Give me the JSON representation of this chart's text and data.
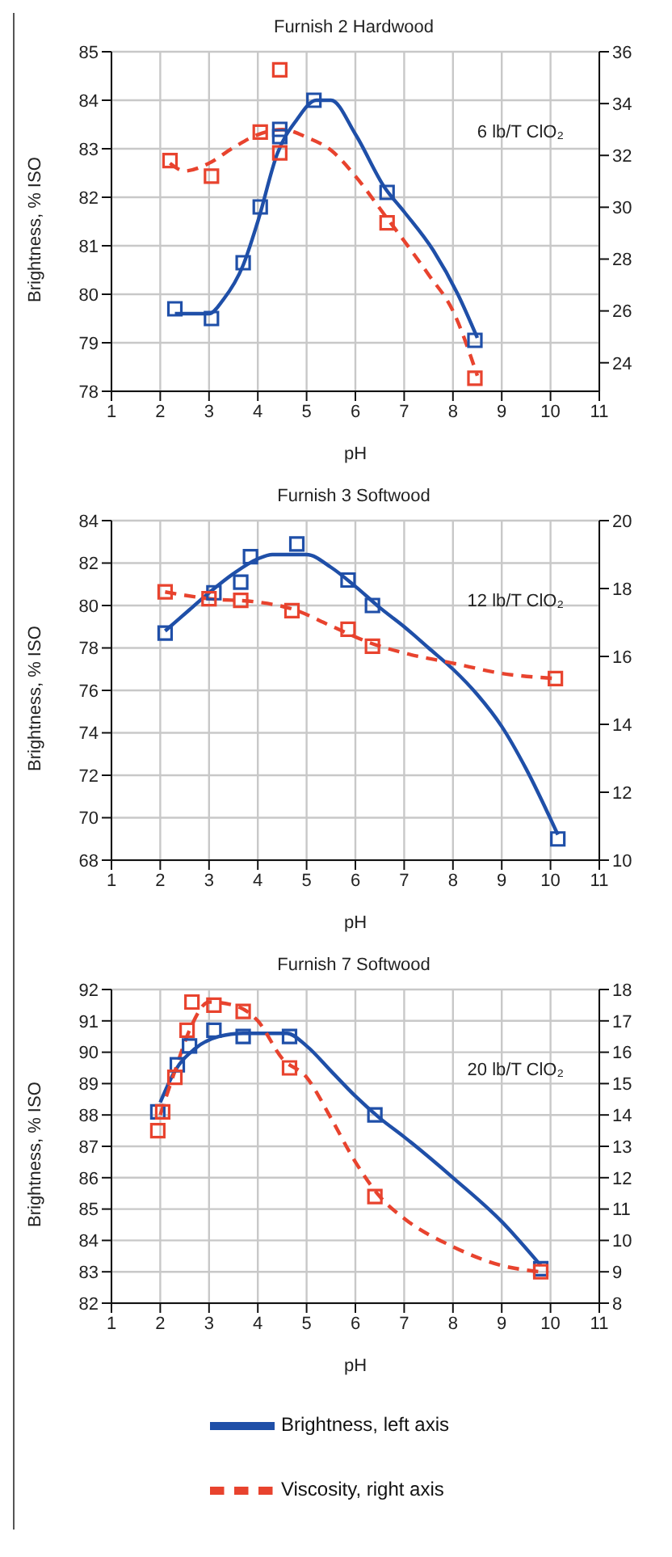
{
  "chart_data": [
    {
      "type": "line",
      "title": "Furnish 2 Hardwood",
      "xlabel": "pH",
      "ylabel": "Brightness, % ISO",
      "xlim": [
        1,
        11
      ],
      "xticks": [
        1,
        2,
        3,
        4,
        5,
        6,
        7,
        8,
        9,
        10,
        11
      ],
      "ylim": [
        78,
        85
      ],
      "yticks": [
        78,
        79,
        80,
        81,
        82,
        83,
        84,
        85
      ],
      "y2lim": [
        22.9,
        36
      ],
      "y2ticks": [
        24,
        26,
        28,
        30,
        32,
        34,
        36
      ],
      "grid": true,
      "legend": false,
      "annotations": [
        "6 lb/T ClO₂"
      ],
      "series": [
        {
          "color": "#1f4fa8",
          "line_style": "solid",
          "x": [
            2.3,
            3.0,
            3.3,
            3.7,
            4.0,
            4.4,
            4.8,
            5.2,
            5.5,
            6.0,
            6.6,
            7.0,
            7.6,
            8.1,
            8.5
          ],
          "values": [
            79.6,
            79.6,
            79.9,
            80.6,
            81.5,
            82.9,
            83.6,
            84.0,
            84.0,
            83.3,
            82.2,
            81.7,
            80.9,
            80.0,
            79.1
          ]
        },
        {
          "axis": "y2",
          "color": "#e8432e",
          "line_style": "dashed",
          "x": [
            2.2,
            2.5,
            3.0,
            3.5,
            4.0,
            4.5,
            5.0,
            5.5,
            6.0,
            6.6,
            7.0,
            7.5,
            8.0,
            8.5
          ],
          "values": [
            31.7,
            31.4,
            31.7,
            32.3,
            32.8,
            33.0,
            32.7,
            32.2,
            31.2,
            29.7,
            28.7,
            27.4,
            26.0,
            23.5
          ]
        },
        {
          "type": "scatter",
          "color": "#1f4fa8",
          "marker": "square",
          "x": [
            2.3,
            3.05,
            3.7,
            4.05,
            4.45,
            4.45,
            5.15,
            6.65,
            8.45
          ],
          "values": [
            79.7,
            79.5,
            80.65,
            81.8,
            83.4,
            83.25,
            84.0,
            82.1,
            79.05
          ]
        },
        {
          "type": "scatter",
          "axis": "y2",
          "color": "#e8432e",
          "marker": "square",
          "x": [
            2.2,
            3.05,
            4.05,
            4.45,
            4.45,
            6.65,
            8.45
          ],
          "values": [
            31.8,
            31.2,
            32.9,
            35.3,
            32.1,
            29.4,
            23.4
          ]
        }
      ]
    },
    {
      "type": "line",
      "title": "Furnish 3 Softwood",
      "xlabel": "pH",
      "ylabel": "Brightness, % ISO",
      "xlim": [
        1,
        11
      ],
      "xticks": [
        1,
        2,
        3,
        4,
        5,
        6,
        7,
        8,
        9,
        10,
        11
      ],
      "ylim": [
        68,
        84
      ],
      "yticks": [
        68,
        70,
        72,
        74,
        76,
        78,
        80,
        82,
        84
      ],
      "y2lim": [
        10,
        20
      ],
      "y2ticks": [
        10,
        12,
        14,
        16,
        18,
        20
      ],
      "grid": true,
      "legend": false,
      "annotations": [
        "12 lb/T ClO₂"
      ],
      "series": [
        {
          "color": "#1f4fa8",
          "line_style": "solid",
          "x": [
            2.1,
            2.6,
            3.0,
            3.5,
            4.0,
            4.3,
            5.0,
            5.5,
            6.0,
            6.5,
            7.0,
            7.5,
            8.0,
            8.5,
            9.0,
            9.5,
            10.15
          ],
          "values": [
            78.8,
            79.8,
            80.6,
            81.5,
            82.2,
            82.4,
            82.4,
            81.8,
            80.9,
            79.9,
            79.0,
            78.0,
            77.0,
            75.8,
            74.3,
            72.3,
            69.2
          ]
        },
        {
          "axis": "y2",
          "color": "#e8432e",
          "line_style": "dashed",
          "x": [
            2.1,
            3.0,
            4.0,
            4.7,
            5.5,
            6.3,
            7.0,
            8.0,
            9.0,
            10.1
          ],
          "values": [
            17.9,
            17.7,
            17.6,
            17.4,
            16.9,
            16.4,
            16.1,
            15.8,
            15.5,
            15.35
          ]
        },
        {
          "type": "scatter",
          "color": "#1f4fa8",
          "marker": "square",
          "x": [
            2.1,
            3.1,
            3.65,
            3.85,
            4.8,
            5.85,
            6.35,
            10.15
          ],
          "values": [
            78.7,
            80.6,
            81.1,
            82.3,
            82.9,
            81.2,
            80.0,
            69.0
          ]
        },
        {
          "type": "scatter",
          "axis": "y2",
          "color": "#e8432e",
          "marker": "square",
          "x": [
            2.1,
            3.0,
            3.65,
            4.7,
            5.85,
            6.35,
            10.1
          ],
          "values": [
            17.9,
            17.7,
            17.65,
            17.35,
            16.8,
            16.3,
            15.35
          ]
        }
      ]
    },
    {
      "type": "line",
      "title": "Furnish 7 Softwood",
      "xlabel": "pH",
      "ylabel": "Brightness, % ISO",
      "xlim": [
        1,
        11
      ],
      "xticks": [
        1,
        2,
        3,
        4,
        5,
        6,
        7,
        8,
        9,
        10,
        11
      ],
      "ylim": [
        82,
        92
      ],
      "yticks": [
        82,
        83,
        84,
        85,
        86,
        87,
        88,
        89,
        90,
        91,
        92
      ],
      "y2lim": [
        8,
        18
      ],
      "y2ticks": [
        8,
        9,
        10,
        11,
        12,
        13,
        14,
        15,
        16,
        17,
        18
      ],
      "grid": true,
      "legend": "bottom",
      "annotations": [
        "20 lb/T ClO₂"
      ],
      "series": [
        {
          "name": "Brightness, left axis",
          "color": "#1f4fa8",
          "line_style": "solid",
          "x": [
            2.0,
            2.3,
            2.7,
            3.2,
            3.7,
            4.6,
            5.0,
            5.5,
            6.0,
            6.5,
            7.0,
            8.0,
            9.0,
            9.8
          ],
          "values": [
            88.4,
            89.4,
            90.1,
            90.5,
            90.6,
            90.6,
            90.2,
            89.4,
            88.6,
            87.9,
            87.3,
            86.0,
            84.6,
            83.2
          ]
        },
        {
          "name": "Viscosity, right axis",
          "axis": "y2",
          "color": "#e8432e",
          "line_style": "dashed",
          "x": [
            2.0,
            2.3,
            2.6,
            3.0,
            3.5,
            4.0,
            4.5,
            5.0,
            5.5,
            6.0,
            6.5,
            7.0,
            8.0,
            9.0,
            9.8
          ],
          "values": [
            14.0,
            15.4,
            16.7,
            17.6,
            17.5,
            17.0,
            15.8,
            15.2,
            13.9,
            12.5,
            11.4,
            10.7,
            9.8,
            9.2,
            9.0
          ]
        },
        {
          "type": "scatter",
          "color": "#1f4fa8",
          "marker": "square",
          "x": [
            1.95,
            2.35,
            2.6,
            3.1,
            3.7,
            4.65,
            6.4,
            9.8
          ],
          "values": [
            88.1,
            89.6,
            90.2,
            90.7,
            90.5,
            90.5,
            88.0,
            83.1
          ]
        },
        {
          "type": "scatter",
          "axis": "y2",
          "color": "#e8432e",
          "marker": "square",
          "x": [
            1.95,
            2.05,
            2.3,
            2.55,
            2.65,
            3.1,
            3.7,
            4.65,
            6.4,
            9.8
          ],
          "values": [
            13.5,
            14.1,
            15.2,
            16.7,
            17.6,
            17.5,
            17.3,
            15.5,
            11.4,
            9.0
          ]
        }
      ]
    }
  ]
}
